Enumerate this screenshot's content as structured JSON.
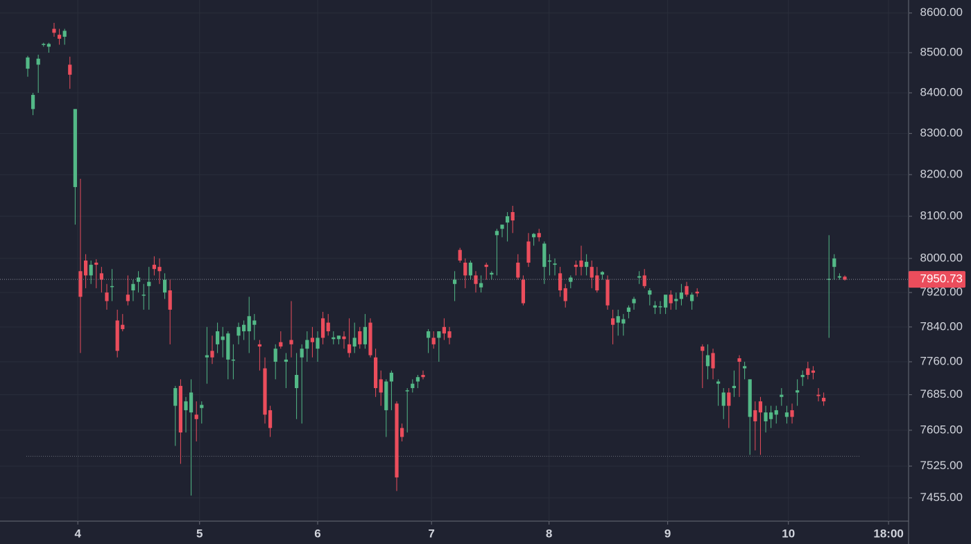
{
  "chart_data": {
    "type": "candlestick",
    "up_color": "#53b987",
    "down_color": "#eb4d5c",
    "log_scale": true,
    "grid": true,
    "ylim": [
      7404,
      8633
    ],
    "yticks": [
      {
        "value": 8600,
        "label": "8600.00"
      },
      {
        "value": 8500,
        "label": "8500.00"
      },
      {
        "value": 8400,
        "label": "8400.00"
      },
      {
        "value": 8300,
        "label": "8300.00"
      },
      {
        "value": 8200,
        "label": "8200.00"
      },
      {
        "value": 8100,
        "label": "8100.00"
      },
      {
        "value": 8000,
        "label": "8000.00"
      },
      {
        "value": 7920,
        "label": "7920.00"
      },
      {
        "value": 7840,
        "label": "7840.00"
      },
      {
        "value": 7760,
        "label": "7760.00"
      },
      {
        "value": 7685,
        "label": "7685.00"
      },
      {
        "value": 7605,
        "label": "7605.00"
      },
      {
        "value": 7525,
        "label": "7525.00"
      },
      {
        "value": 7455,
        "label": "7455.00"
      }
    ],
    "xlim": [
      -5.26,
      167.1
    ],
    "xticks": [
      {
        "value": 9.5,
        "label": "4"
      },
      {
        "value": 32.6,
        "label": "5"
      },
      {
        "value": 55,
        "label": "6"
      },
      {
        "value": 76.6,
        "label": "7"
      },
      {
        "value": 98.9,
        "label": "8"
      },
      {
        "value": 121.4,
        "label": "9"
      },
      {
        "value": 144.3,
        "label": "10"
      },
      {
        "value": 163.3,
        "label": "18:00"
      }
    ],
    "last_price": 7950.73,
    "low_line": 7547,
    "candles": [
      [
        8460,
        8492,
        8440,
        8488
      ],
      [
        8360,
        8400,
        8345,
        8395
      ],
      [
        8470,
        8495,
        8400,
        8485
      ],
      [
        8520,
        8525,
        8515,
        8522
      ],
      [
        8515,
        8525,
        8500,
        8522
      ],
      [
        8560,
        8575,
        8540,
        8550
      ],
      [
        8545,
        8560,
        8520,
        8535
      ],
      [
        8540,
        8560,
        8520,
        8555
      ],
      [
        8470,
        8490,
        8410,
        8445
      ],
      [
        8170,
        8360,
        8080,
        8360
      ],
      [
        7970,
        8190,
        7780,
        7910
      ],
      [
        7995,
        8010,
        7930,
        7960
      ],
      [
        7960,
        7995,
        7940,
        7985
      ],
      [
        7990,
        7998,
        7930,
        7985
      ],
      [
        7965,
        7980,
        7920,
        7950
      ],
      [
        7920,
        7940,
        7880,
        7900
      ],
      [
        7935,
        7975,
        7900,
        7935
      ],
      [
        7855,
        7880,
        7770,
        7785
      ],
      [
        7845,
        7870,
        7830,
        7835
      ],
      [
        7915,
        7960,
        7890,
        7900
      ],
      [
        7925,
        7950,
        7900,
        7940
      ],
      [
        7945,
        7970,
        7920,
        7955
      ],
      [
        7915,
        7940,
        7880,
        7915
      ],
      [
        7935,
        7980,
        7880,
        7945
      ],
      [
        7985,
        8005,
        7960,
        7975
      ],
      [
        7980,
        8000,
        7940,
        7970
      ],
      [
        7920,
        7965,
        7905,
        7950
      ],
      [
        7925,
        7950,
        7800,
        7880
      ],
      [
        7660,
        7705,
        7570,
        7700
      ],
      [
        7705,
        7720,
        7530,
        7600
      ],
      [
        7650,
        7680,
        7600,
        7670
      ],
      [
        7645,
        7720,
        7460,
        7690
      ],
      [
        7640,
        7670,
        7580,
        7630
      ],
      [
        7655,
        7670,
        7620,
        7662
      ],
      [
        7770,
        7840,
        7710,
        7775
      ],
      [
        7785,
        7820,
        7755,
        7770
      ],
      [
        7800,
        7850,
        7780,
        7830
      ],
      [
        7810,
        7840,
        7770,
        7818
      ],
      [
        7765,
        7830,
        7720,
        7825
      ],
      [
        7765,
        7800,
        7720,
        7765
      ],
      [
        7820,
        7850,
        7800,
        7840
      ],
      [
        7830,
        7855,
        7810,
        7845
      ],
      [
        7830,
        7910,
        7780,
        7865
      ],
      [
        7845,
        7870,
        7810,
        7855
      ],
      [
        7800,
        7810,
        7740,
        7795
      ],
      [
        7745,
        7770,
        7620,
        7640
      ],
      [
        7650,
        7660,
        7590,
        7610
      ],
      [
        7760,
        7800,
        7720,
        7790
      ],
      [
        7805,
        7830,
        7790,
        7795
      ],
      [
        7760,
        7780,
        7700,
        7765
      ],
      [
        7810,
        7900,
        7770,
        7800
      ],
      [
        7700,
        7780,
        7630,
        7730
      ],
      [
        7770,
        7800,
        7620,
        7790
      ],
      [
        7790,
        7830,
        7760,
        7810
      ],
      [
        7815,
        7840,
        7770,
        7805
      ],
      [
        7790,
        7830,
        7760,
        7815
      ],
      [
        7860,
        7875,
        7800,
        7815
      ],
      [
        7850,
        7870,
        7820,
        7830
      ],
      [
        7812,
        7830,
        7800,
        7816
      ],
      [
        7812,
        7820,
        7800,
        7820
      ],
      [
        7818,
        7830,
        7790,
        7812
      ],
      [
        7800,
        7860,
        7770,
        7780
      ],
      [
        7795,
        7850,
        7780,
        7815
      ],
      [
        7830,
        7840,
        7790,
        7800
      ],
      [
        7800,
        7870,
        7790,
        7840
      ],
      [
        7850,
        7860,
        7770,
        7775
      ],
      [
        7770,
        7790,
        7680,
        7700
      ],
      [
        7720,
        7740,
        7660,
        7690
      ],
      [
        7650,
        7720,
        7590,
        7715
      ],
      [
        7715,
        7740,
        7650,
        7735
      ],
      [
        7665,
        7670,
        7470,
        7500
      ],
      [
        7610,
        7620,
        7580,
        7590
      ],
      [
        7695,
        7700,
        7600,
        7695
      ],
      [
        7700,
        7720,
        7690,
        7710
      ],
      [
        7715,
        7730,
        7700,
        7725
      ],
      [
        7730,
        7740,
        7720,
        7725
      ],
      [
        7815,
        7835,
        7780,
        7830
      ],
      [
        7815,
        7830,
        7790,
        7800
      ],
      [
        7815,
        7830,
        7760,
        7830
      ],
      [
        7840,
        7860,
        7810,
        7825
      ],
      [
        7830,
        7840,
        7800,
        7815
      ],
      [
        7940,
        7970,
        7900,
        7950
      ],
      [
        8020,
        8025,
        7990,
        7995
      ],
      [
        7990,
        8000,
        7930,
        7960
      ],
      [
        7960,
        7995,
        7950,
        7990
      ],
      [
        7960,
        7970,
        7920,
        7940
      ],
      [
        7932,
        7960,
        7920,
        7942
      ],
      [
        7985,
        7990,
        7950,
        7980
      ],
      [
        7962,
        7970,
        7950,
        7966
      ],
      [
        8055,
        8070,
        7960,
        8065
      ],
      [
        8070,
        8080,
        8050,
        8080
      ],
      [
        8085,
        8110,
        8040,
        8100
      ],
      [
        8110,
        8125,
        8060,
        8090
      ],
      [
        7990,
        8010,
        7950,
        7955
      ],
      [
        7950,
        7960,
        7890,
        7895
      ],
      [
        8040,
        8060,
        7980,
        7990
      ],
      [
        8050,
        8060,
        8030,
        8058
      ],
      [
        8060,
        8070,
        8040,
        8050
      ],
      [
        7980,
        8040,
        7940,
        8035
      ],
      [
        7995,
        8010,
        7960,
        7995
      ],
      [
        7985,
        8000,
        7960,
        7988
      ],
      [
        7965,
        7980,
        7910,
        7925
      ],
      [
        7930,
        7940,
        7885,
        7900
      ],
      [
        7945,
        7960,
        7930,
        7955
      ],
      [
        7985,
        7995,
        7960,
        7980
      ],
      [
        7995,
        8030,
        7960,
        7980
      ],
      [
        7980,
        8010,
        7960,
        7992
      ],
      [
        7980,
        7995,
        7930,
        7955
      ],
      [
        7960,
        7980,
        7920,
        7925
      ],
      [
        7962,
        7970,
        7950,
        7968
      ],
      [
        7950,
        7960,
        7880,
        7890
      ],
      [
        7860,
        7880,
        7800,
        7845
      ],
      [
        7850,
        7880,
        7820,
        7865
      ],
      [
        7848,
        7870,
        7820,
        7858
      ],
      [
        7875,
        7890,
        7860,
        7885
      ],
      [
        7895,
        7910,
        7880,
        7905
      ],
      [
        7955,
        7970,
        7940,
        7958
      ],
      [
        7960,
        7975,
        7930,
        7935
      ],
      [
        7915,
        7930,
        7890,
        7925
      ],
      [
        7885,
        7900,
        7870,
        7890
      ],
      [
        7886,
        7900,
        7870,
        7888
      ],
      [
        7885,
        7910,
        7870,
        7915
      ],
      [
        7915,
        7925,
        7880,
        7895
      ],
      [
        7900,
        7920,
        7880,
        7905
      ],
      [
        7905,
        7940,
        7890,
        7920
      ],
      [
        7935,
        7945,
        7910,
        7915
      ],
      [
        7900,
        7920,
        7880,
        7915
      ],
      [
        7922,
        7930,
        7910,
        7918
      ],
      [
        7795,
        7800,
        7700,
        7785
      ],
      [
        7750,
        7800,
        7720,
        7775
      ],
      [
        7780,
        7790,
        7720,
        7745
      ],
      [
        7710,
        7720,
        7660,
        7715
      ],
      [
        7660,
        7700,
        7630,
        7690
      ],
      [
        7690,
        7700,
        7610,
        7660
      ],
      [
        7700,
        7740,
        7680,
        7705
      ],
      [
        7768,
        7775,
        7680,
        7760
      ],
      [
        7745,
        7760,
        7720,
        7750
      ],
      [
        7635,
        7720,
        7550,
        7720
      ],
      [
        7650,
        7670,
        7560,
        7625
      ],
      [
        7670,
        7680,
        7550,
        7645
      ],
      [
        7625,
        7660,
        7600,
        7645
      ],
      [
        7630,
        7660,
        7610,
        7645
      ],
      [
        7640,
        7660,
        7620,
        7650
      ],
      [
        7680,
        7700,
        7660,
        7685
      ],
      [
        7635,
        7660,
        7620,
        7645
      ],
      [
        7650,
        7665,
        7620,
        7635
      ],
      [
        7690,
        7720,
        7660,
        7695
      ],
      [
        7725,
        7740,
        7705,
        7730
      ],
      [
        7745,
        7760,
        7720,
        7730
      ],
      [
        7740,
        7750,
        7720,
        7735
      ],
      [
        7685,
        7700,
        7670,
        7682
      ],
      [
        7678,
        7690,
        7660,
        7670
      ],
      [
        7950,
        8055,
        7815,
        7952
      ],
      [
        7980,
        8010,
        7950,
        8000
      ],
      [
        7955,
        7965,
        7950,
        7958
      ],
      [
        7957,
        7960,
        7948,
        7950
      ]
    ]
  }
}
